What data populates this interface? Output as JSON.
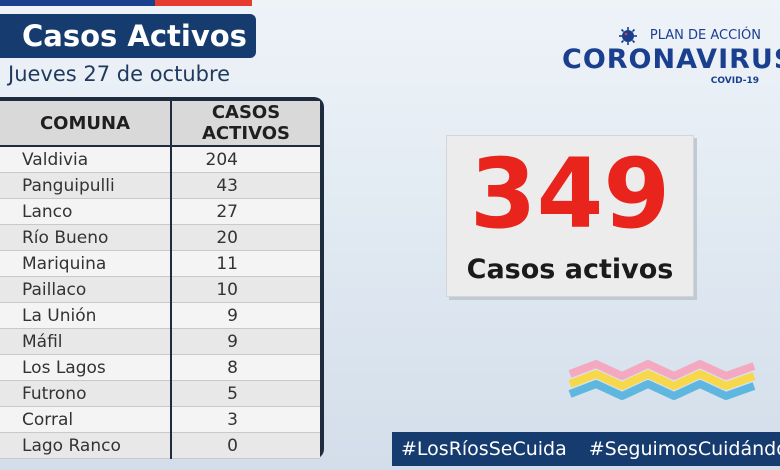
{
  "header": {
    "title": "Casos Activos",
    "date": "Jueves 27 de octubre"
  },
  "logo": {
    "plan": "PLAN DE ACCIÓN",
    "name": "CORONAVIRUS",
    "sub": "COVID-19"
  },
  "table": {
    "headers": [
      "COMUNA",
      "CASOS ACTIVOS"
    ],
    "rows": [
      {
        "comuna": "Valdivia",
        "casos": "204"
      },
      {
        "comuna": "Panguipulli",
        "casos": "43"
      },
      {
        "comuna": "Lanco",
        "casos": "27"
      },
      {
        "comuna": "Río Bueno",
        "casos": "20"
      },
      {
        "comuna": "Mariquina",
        "casos": "11"
      },
      {
        "comuna": "Paillaco",
        "casos": "10"
      },
      {
        "comuna": "La Unión",
        "casos": "9"
      },
      {
        "comuna": "Máfil",
        "casos": "9"
      },
      {
        "comuna": "Los Lagos",
        "casos": "8"
      },
      {
        "comuna": "Futrono",
        "casos": "5"
      },
      {
        "comuna": "Corral",
        "casos": "3"
      },
      {
        "comuna": "Lago Ranco",
        "casos": "0"
      }
    ]
  },
  "total": {
    "value": "349",
    "label": "Casos activos"
  },
  "hashtags": [
    "#LosRíosSeCuida",
    "#SeguimosCuidándonos"
  ],
  "colors": {
    "navy": "#163b6e",
    "red": "#e8241c",
    "blue": "#1a3f8f"
  }
}
